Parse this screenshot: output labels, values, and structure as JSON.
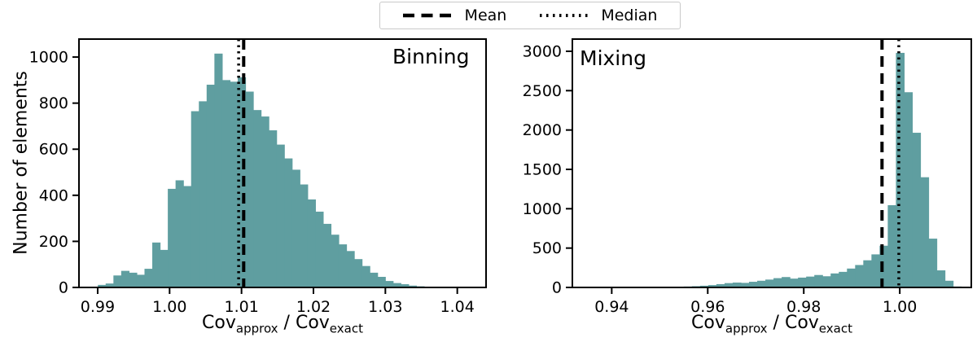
{
  "figure": {
    "background": "#ffffff",
    "bar_color": "#5f9ea0",
    "line_color": "#000000",
    "text_color": "#000000",
    "legend_border_color": "#c9c9c9"
  },
  "legend": {
    "items": [
      {
        "label": "Mean",
        "style": "dashed"
      },
      {
        "label": "Median",
        "style": "dotted"
      }
    ]
  },
  "ylabel": "Number of elements",
  "xlabel": {
    "cov1": "Cov",
    "sub1": "approx",
    "sep": " / ",
    "cov2": "Cov",
    "sub2": "exact"
  },
  "chart_data": [
    {
      "type": "bar",
      "title": "Binning",
      "xlabel": "Cov_approx / Cov_exact",
      "ylabel": "Number of elements",
      "xlim": [
        0.9874,
        1.044
      ],
      "ylim": [
        0,
        1078
      ],
      "grid": false,
      "xticks": [
        {
          "v": 0.99,
          "label": "0.99"
        },
        {
          "v": 1.0,
          "label": "1.00"
        },
        {
          "v": 1.01,
          "label": "1.01"
        },
        {
          "v": 1.02,
          "label": "1.02"
        },
        {
          "v": 1.03,
          "label": "1.03"
        },
        {
          "v": 1.04,
          "label": "1.04"
        }
      ],
      "yticks": [
        {
          "v": 0,
          "label": "0"
        },
        {
          "v": 200,
          "label": "200"
        },
        {
          "v": 400,
          "label": "400"
        },
        {
          "v": 600,
          "label": "600"
        },
        {
          "v": 800,
          "label": "800"
        },
        {
          "v": 1000,
          "label": "1000"
        }
      ],
      "bin_width": 0.00108,
      "bin_starts": [
        0.99003,
        0.99111,
        0.99219,
        0.99327,
        0.99435,
        0.99543,
        0.99651,
        0.99759,
        0.99867,
        0.99975,
        1.00083,
        1.00191,
        1.00299,
        1.00407,
        1.00515,
        1.00623,
        1.00731,
        1.00839,
        1.00947,
        1.01055,
        1.01163,
        1.01271,
        1.01379,
        1.01487,
        1.01595,
        1.01703,
        1.01811,
        1.01919,
        1.02027,
        1.02135,
        1.02243,
        1.02351,
        1.02459,
        1.02567,
        1.02675,
        1.02783,
        1.02891,
        1.02999,
        1.03107,
        1.03215,
        1.03323,
        1.03431,
        1.03539,
        1.03647
      ],
      "counts": [
        11,
        17,
        52,
        72,
        64,
        55,
        81,
        195,
        163,
        428,
        465,
        440,
        765,
        808,
        880,
        1015,
        900,
        893,
        912,
        850,
        770,
        742,
        682,
        620,
        560,
        511,
        447,
        382,
        329,
        276,
        229,
        187,
        158,
        123,
        93,
        64,
        46,
        28,
        19,
        14,
        8,
        5,
        3,
        2
      ],
      "mean": 1.0103,
      "median": 1.0096
    },
    {
      "type": "bar",
      "title": "Mixing",
      "xlabel": "Cov_approx / Cov_exact",
      "ylabel": "",
      "xlim": [
        0.9318,
        1.0149
      ],
      "ylim": [
        0,
        3155
      ],
      "grid": false,
      "xticks": [
        {
          "v": 0.94,
          "label": "0.94"
        },
        {
          "v": 0.96,
          "label": "0.96"
        },
        {
          "v": 0.98,
          "label": "0.98"
        },
        {
          "v": 1.0,
          "label": "1.00"
        }
      ],
      "yticks": [
        {
          "v": 0,
          "label": "0"
        },
        {
          "v": 500,
          "label": "500"
        },
        {
          "v": 1000,
          "label": "1000"
        },
        {
          "v": 1500,
          "label": "1500"
        },
        {
          "v": 2000,
          "label": "2000"
        },
        {
          "v": 2500,
          "label": "2500"
        },
        {
          "v": 3000,
          "label": "3000"
        }
      ],
      "bin_width": 0.0017,
      "bin_starts": [
        0.9482,
        0.9499,
        0.9516,
        0.9533,
        0.955,
        0.9567,
        0.9584,
        0.9601,
        0.9618,
        0.9635,
        0.9652,
        0.9669,
        0.9686,
        0.9703,
        0.972,
        0.9737,
        0.9754,
        0.9771,
        0.9788,
        0.9805,
        0.9822,
        0.9839,
        0.9856,
        0.9873,
        0.989,
        0.9907,
        0.9924,
        0.9941,
        0.9958,
        0.9975,
        0.9992,
        1.0009,
        1.0026,
        1.0043,
        1.006,
        1.0077,
        1.0094,
        1.0111
      ],
      "counts": [
        3,
        5,
        6,
        8,
        12,
        16,
        22,
        30,
        42,
        55,
        62,
        58,
        72,
        85,
        100,
        118,
        132,
        112,
        125,
        138,
        158,
        142,
        178,
        198,
        240,
        285,
        345,
        420,
        530,
        1045,
        2980,
        2480,
        1965,
        1400,
        620,
        217,
        85,
        12
      ],
      "mean": 0.9963,
      "median": 0.9998
    }
  ]
}
